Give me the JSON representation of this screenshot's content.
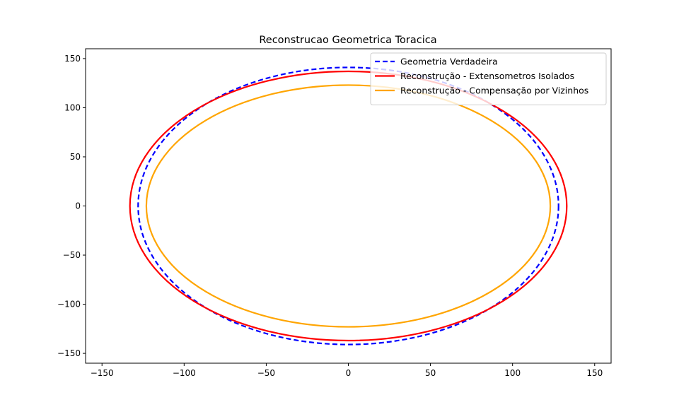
{
  "chart_data": {
    "type": "line",
    "title": "Reconstrucao Geometrica Toracica",
    "xlabel": "",
    "ylabel": "",
    "xlim": [
      -160,
      160
    ],
    "ylim": [
      -160,
      160
    ],
    "x_ticks": [
      -150,
      -100,
      -50,
      0,
      50,
      100,
      150
    ],
    "y_ticks": [
      -150,
      -100,
      -50,
      0,
      50,
      100,
      150
    ],
    "x_tick_labels": [
      "−150",
      "−100",
      "−50",
      "0",
      "50",
      "100",
      "150"
    ],
    "y_tick_labels": [
      "−150",
      "−100",
      "−50",
      "0",
      "50",
      "100",
      "150"
    ],
    "grid": false,
    "legend_position": "top-right",
    "series": [
      {
        "name": "Geometria Verdadeira",
        "shape": "ellipse",
        "center": [
          0,
          0
        ],
        "semi_axis_x": 128,
        "semi_axis_y": 141,
        "color": "#0000ff",
        "dash": true
      },
      {
        "name": "Reconstrução - Extensometros Isolados",
        "shape": "ellipse",
        "center": [
          0,
          0
        ],
        "semi_axis_x": 133,
        "semi_axis_y": 137,
        "color": "#ff0000",
        "dash": false
      },
      {
        "name": "Reconstrução - Compensação por Vizinhos",
        "shape": "ellipse",
        "center": [
          0,
          0
        ],
        "semi_axis_x": 123,
        "semi_axis_y": 123,
        "color": "#ffa500",
        "dash": false
      }
    ]
  }
}
